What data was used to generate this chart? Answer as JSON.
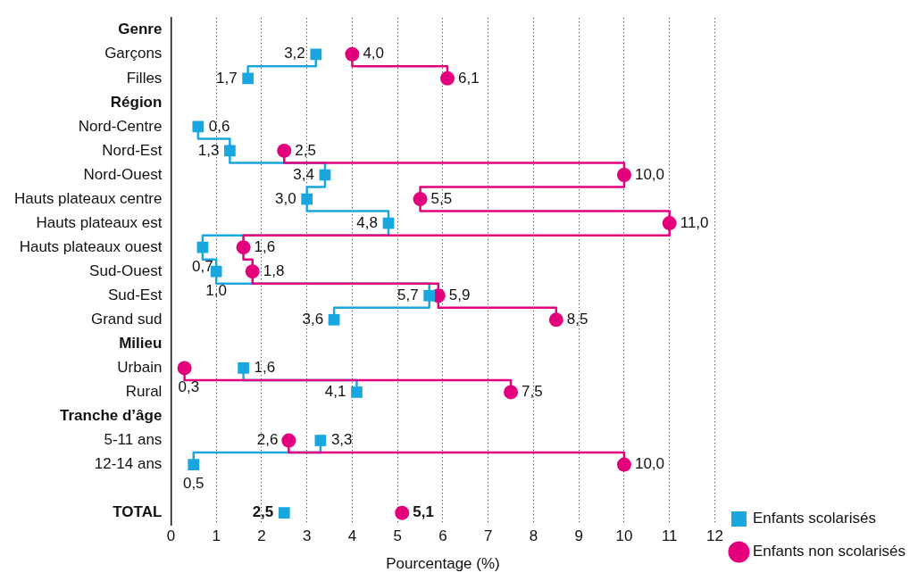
{
  "chart_data": {
    "type": "step",
    "orientation": "horizontal",
    "xlabel": "Pourcentage (%)",
    "categories": [
      "Genre",
      "Garçons",
      "Filles",
      "Région",
      "Nord-Centre",
      "Nord-Est",
      "Nord-Ouest",
      "Hauts plateaux centre",
      "Hauts plateaux est",
      "Hauts plateaux ouest",
      "Sud-Ouest",
      "Sud-Est",
      "Grand sud",
      "Milieu",
      "Urbain",
      "Rural",
      "Tranche d’âge",
      "5-11 ans",
      "12-14 ans",
      null,
      "TOTAL"
    ],
    "series": [
      {
        "name": "Enfants scolarisés",
        "color": "#1aa7e0",
        "marker": "square",
        "values": [
          null,
          3.2,
          1.7,
          null,
          0.6,
          1.3,
          3.4,
          3.0,
          4.8,
          0.7,
          1.0,
          5.7,
          3.6,
          null,
          1.6,
          4.1,
          null,
          3.3,
          0.5,
          null,
          2.5
        ],
        "value_labels": [
          null,
          "3,2",
          "1,7",
          null,
          "0,6",
          "1,3",
          "3,4",
          "3,0",
          "4,8",
          "0,7",
          "1,0",
          "5,7",
          "3,6",
          null,
          "1,6",
          "4,1",
          null,
          "3,3",
          "0,5",
          null,
          "2,5"
        ]
      },
      {
        "name": "Enfants non scolarisés",
        "color": "#e4007d",
        "marker": "circle",
        "values": [
          null,
          4.0,
          6.1,
          null,
          null,
          2.5,
          10.0,
          5.5,
          11.0,
          1.6,
          1.8,
          5.9,
          8.5,
          null,
          0.3,
          7.5,
          null,
          2.6,
          10.0,
          null,
          5.1
        ],
        "value_labels": [
          null,
          "4,0",
          "6,1",
          null,
          null,
          "2,5",
          "10,0",
          "5,5",
          "11,0",
          "1,6",
          "1,8",
          "5,9",
          "8,5",
          null,
          "0,3",
          "7,5",
          null,
          "2,6",
          "10,0",
          null,
          "5,1"
        ]
      }
    ],
    "xlim": [
      0,
      12
    ],
    "xticks": [
      0,
      1,
      2,
      3,
      4,
      5,
      6,
      7,
      8,
      9,
      10,
      11,
      12
    ],
    "grid": "x",
    "legend": "bottom right"
  }
}
